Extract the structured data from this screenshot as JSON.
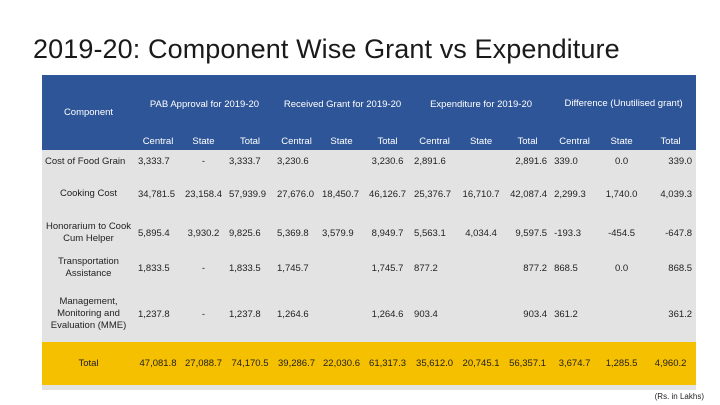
{
  "title": "2019-20: Component Wise Grant vs Expenditure",
  "header": {
    "component": "Component",
    "groups": [
      "PAB Approval for 2019-20",
      "Received Grant for 2019-20",
      "Expenditure  for 2019-20",
      "Difference (Unutilised grant)"
    ],
    "sub": [
      "Central",
      "State",
      "Total"
    ]
  },
  "rows": [
    {
      "label": "Cost of Food Grain",
      "cells": [
        "3,333.7",
        "-",
        "3,333.7",
        "3,230.6",
        "",
        "3,230.6",
        "2,891.6",
        "",
        "2,891.6",
        "339.0",
        "0.0",
        "339.0"
      ]
    },
    {
      "label": "Cooking Cost",
      "cells": [
        "34,781.5",
        "23,158.4",
        "57,939.9",
        "27,676.0",
        "18,450.7",
        "46,126.7",
        "25,376.7",
        "16,710.7",
        "42,087.4",
        "2,299.3",
        "1,740.0",
        "4,039.3"
      ]
    },
    {
      "label": "Honorarium to Cook Cum Helper",
      "cells": [
        "5,895.4",
        "3,930.2",
        "9,825.6",
        "5,369.8",
        "3,579.9",
        "8,949.7",
        "5,563.1",
        "4,034.4",
        "9,597.5",
        "-193.3",
        "-454.5",
        "-647.8"
      ]
    },
    {
      "label": "Transportation Assistance",
      "cells": [
        "1,833.5",
        "-",
        "1,833.5",
        "1,745.7",
        "",
        "1,745.7",
        "877.2",
        "",
        "877.2",
        "868.5",
        "0.0",
        "868.5"
      ]
    },
    {
      "label": "Management, Monitoring and Evaluation (MME)",
      "cells": [
        "1,237.8",
        "-",
        "1,237.8",
        "1,264.6",
        "",
        "1,264.6",
        "903.4",
        "",
        "903.4",
        "361.2",
        "",
        "361.2"
      ]
    }
  ],
  "total": {
    "label": "Total",
    "cells": [
      "47,081.8",
      "27,088.7",
      "74,170.5",
      "39,286.7",
      "22,030.6",
      "61,317.3",
      "35,612.0",
      "20,745.1",
      "56,357.1",
      "3,674.7",
      "1,285.5",
      "4,960.2"
    ]
  },
  "unit_note": "(Rs. in Lakhs)"
}
